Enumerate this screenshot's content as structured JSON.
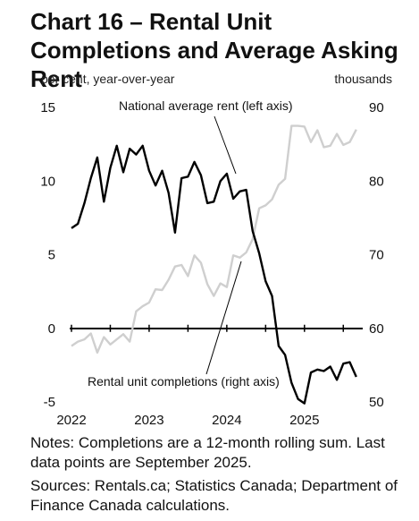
{
  "title": "Chart 16 – Rental Unit Completions and Average Asking Rent",
  "notes": {
    "line1": "Notes: Completions are a 12-month rolling sum. Last data points are September 2025.",
    "line2": "Sources: Rentals.ca; Statistics Canada; Department of Finance Canada calculations."
  },
  "chart_data": {
    "type": "line",
    "left_axis": {
      "label": "per cent, year-over-year",
      "ticks": [
        "15",
        "10",
        "5",
        "0",
        "-5"
      ],
      "range": [
        -5,
        15
      ]
    },
    "right_axis": {
      "label": "thousands",
      "ticks": [
        "90",
        "80",
        "70",
        "60",
        "50"
      ],
      "range": [
        50,
        90
      ]
    },
    "x_axis": {
      "ticks": [
        "2022",
        "2023",
        "2024",
        "2025"
      ],
      "range": [
        2022.0,
        2025.75
      ]
    },
    "grid": false,
    "series": [
      {
        "name": "National average rent (left axis)",
        "axis": "left",
        "color": "#000000",
        "x": [
          2022.0,
          2022.083,
          2022.167,
          2022.25,
          2022.333,
          2022.417,
          2022.5,
          2022.583,
          2022.667,
          2022.75,
          2022.833,
          2022.917,
          2023.0,
          2023.083,
          2023.167,
          2023.25,
          2023.333,
          2023.417,
          2023.5,
          2023.583,
          2023.667,
          2023.75,
          2023.833,
          2023.917,
          2024.0,
          2024.083,
          2024.167,
          2024.25,
          2024.333,
          2024.417,
          2024.5,
          2024.583,
          2024.667,
          2024.75,
          2024.833,
          2024.917,
          2025.0,
          2025.083,
          2025.167,
          2025.25,
          2025.333,
          2025.417,
          2025.5,
          2025.583,
          2025.667
        ],
        "y": [
          6.8,
          7.1,
          8.5,
          10.2,
          11.6,
          8.6,
          10.9,
          12.4,
          10.6,
          12.2,
          11.8,
          12.4,
          10.7,
          9.7,
          10.7,
          9.2,
          6.5,
          10.2,
          10.3,
          11.3,
          10.4,
          8.5,
          8.6,
          10.0,
          10.5,
          8.8,
          9.3,
          9.4,
          6.6,
          5.1,
          3.2,
          2.2,
          -1.2,
          -1.8,
          -3.7,
          -4.8,
          -5.1,
          -3.0,
          -2.8,
          -2.9,
          -2.6,
          -3.5,
          -2.4,
          -2.3,
          -3.3
        ]
      },
      {
        "name": "Rental unit completions (right axis)",
        "axis": "right",
        "color": "#cfcfcf",
        "x": [
          2022.0,
          2022.083,
          2022.167,
          2022.25,
          2022.333,
          2022.417,
          2022.5,
          2022.583,
          2022.667,
          2022.75,
          2022.833,
          2022.917,
          2023.0,
          2023.083,
          2023.167,
          2023.25,
          2023.333,
          2023.417,
          2023.5,
          2023.583,
          2023.667,
          2023.75,
          2023.833,
          2023.917,
          2024.0,
          2024.083,
          2024.167,
          2024.25,
          2024.333,
          2024.417,
          2024.5,
          2024.583,
          2024.667,
          2024.75,
          2024.833,
          2024.917,
          2025.0,
          2025.083,
          2025.167,
          2025.25,
          2025.333,
          2025.417,
          2025.5,
          2025.583,
          2025.667
        ],
        "y": [
          57.6,
          58.2,
          58.5,
          59.3,
          56.7,
          58.8,
          57.8,
          58.5,
          59.2,
          58.2,
          62.3,
          63.0,
          63.5,
          65.3,
          65.2,
          66.6,
          68.4,
          68.6,
          67.1,
          69.9,
          68.9,
          66.0,
          64.4,
          66.1,
          65.6,
          69.9,
          69.6,
          70.3,
          72.1,
          76.3,
          76.7,
          77.5,
          79.5,
          80.3,
          87.5,
          87.5,
          87.4,
          85.3,
          86.9,
          84.6,
          84.8,
          86.4,
          84.9,
          85.3,
          87.0
        ]
      }
    ],
    "annotations": {
      "rent_label": "National average rent (left axis)",
      "completions_label": "Rental unit completions (right axis)"
    }
  }
}
